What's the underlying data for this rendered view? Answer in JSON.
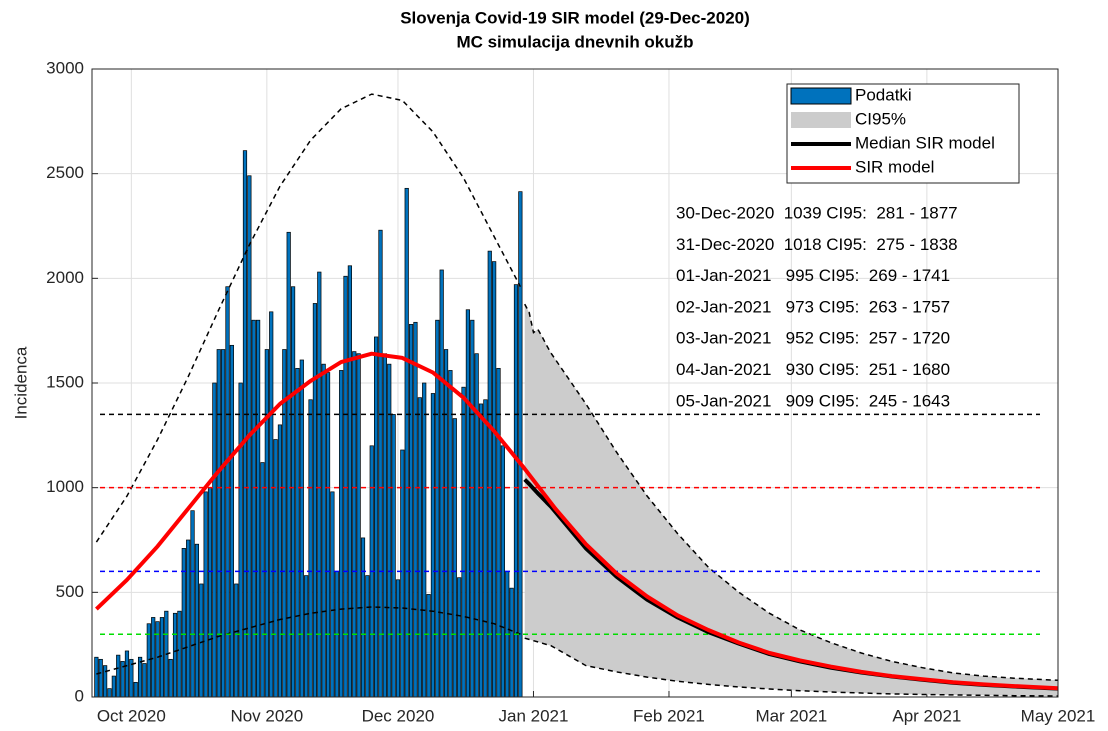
{
  "chart_data": {
    "type": "combo",
    "title": "Slovenja Covid-19 SIR model (29-Dec-2020)",
    "subtitle": "MC simulacija dnevnih okužb",
    "y_label": "Incidenca",
    "xlim": [
      -9,
      212
    ],
    "xticks": [
      {
        "value": 0,
        "label": "Oct 2020"
      },
      {
        "value": 31,
        "label": "Nov 2020"
      },
      {
        "value": 61,
        "label": "Dec 2020"
      },
      {
        "value": 92,
        "label": "Jan 2021"
      },
      {
        "value": 123,
        "label": "Feb 2021"
      },
      {
        "value": 151,
        "label": "Mar 2021"
      },
      {
        "value": 182,
        "label": "Apr 2021"
      },
      {
        "value": 212,
        "label": "May 2021"
      }
    ],
    "ylim": [
      0,
      3000
    ],
    "yticks": [
      0,
      500,
      1000,
      1500,
      2000,
      2500,
      3000
    ],
    "grid": true,
    "legend": "upper-right",
    "series": [
      {
        "name": "Podatki",
        "type": "bar",
        "color": "#0072bd",
        "x": [
          -8,
          -7,
          -6,
          -5,
          -4,
          -3,
          -2,
          -1,
          0,
          1,
          2,
          3,
          4,
          5,
          6,
          7,
          8,
          9,
          10,
          11,
          12,
          13,
          14,
          15,
          16,
          17,
          18,
          19,
          20,
          21,
          22,
          23,
          24,
          25,
          26,
          27,
          28,
          29,
          30,
          31,
          32,
          33,
          34,
          35,
          36,
          37,
          38,
          39,
          40,
          41,
          42,
          43,
          44,
          45,
          46,
          47,
          48,
          49,
          50,
          51,
          52,
          53,
          54,
          55,
          56,
          57,
          58,
          59,
          60,
          61,
          62,
          63,
          64,
          65,
          66,
          67,
          68,
          69,
          70,
          71,
          72,
          73,
          74,
          75,
          76,
          77,
          78,
          79,
          80,
          81,
          82,
          83,
          84,
          85,
          86,
          87,
          88,
          89
        ],
        "values": [
          190,
          180,
          150,
          40,
          100,
          200,
          170,
          220,
          180,
          70,
          190,
          160,
          350,
          380,
          360,
          380,
          410,
          180,
          400,
          410,
          710,
          750,
          890,
          730,
          540,
          980,
          1000,
          1500,
          1660,
          1660,
          1960,
          1680,
          540,
          1500,
          2610,
          2490,
          1800,
          1800,
          1120,
          1660,
          1840,
          1230,
          1300,
          1660,
          2220,
          1960,
          1570,
          1610,
          580,
          1420,
          1880,
          2030,
          1590,
          1550,
          980,
          600,
          1560,
          2010,
          2060,
          1650,
          1640,
          760,
          580,
          1200,
          1720,
          2230,
          1640,
          1590,
          1350,
          560,
          1180,
          2430,
          1780,
          1790,
          1430,
          1500,
          490,
          1450,
          1800,
          2040,
          1660,
          1560,
          1330,
          570,
          1480,
          1850,
          1800,
          1640,
          1400,
          1420,
          2130,
          2080,
          1570,
          1200,
          600,
          520,
          1970,
          2414
        ]
      },
      {
        "name": "CI95%",
        "type": "band",
        "color": "#cccccc",
        "x": [
          90,
          91,
          92,
          93,
          94,
          95,
          96,
          104,
          111,
          118,
          125,
          132,
          139,
          146,
          153,
          160,
          167,
          174,
          181,
          188,
          195,
          202,
          212
        ],
        "lower": [
          281,
          275,
          269,
          263,
          257,
          251,
          245,
          150,
          120,
          95,
          75,
          60,
          48,
          38,
          30,
          24,
          19,
          15,
          12,
          10,
          8,
          6,
          5
        ],
        "upper": [
          1877,
          1838,
          1741,
          1757,
          1720,
          1680,
          1643,
          1400,
          1170,
          960,
          780,
          620,
          500,
          400,
          320,
          260,
          210,
          170,
          140,
          115,
          100,
          90,
          80
        ]
      },
      {
        "name": "Median SIR model",
        "type": "line",
        "color": "#000000",
        "x": [
          90,
          91,
          92,
          93,
          94,
          95,
          96,
          104,
          111,
          118,
          125,
          132,
          139,
          146,
          153,
          160,
          167,
          174,
          181,
          188,
          195,
          202,
          212
        ],
        "values": [
          1039,
          1018,
          995,
          973,
          952,
          930,
          909,
          710,
          575,
          465,
          380,
          310,
          255,
          205,
          170,
          140,
          117,
          98,
          82,
          68,
          58,
          50,
          40
        ]
      },
      {
        "name": "SIR model",
        "type": "line",
        "color": "#ff0000",
        "x": [
          -8,
          -1,
          6,
          13,
          20,
          27,
          34,
          41,
          48,
          55,
          62,
          69,
          76,
          83,
          90,
          97,
          104,
          111,
          118,
          125,
          132,
          139,
          146,
          153,
          160,
          167,
          174,
          181,
          188,
          195,
          202,
          212
        ],
        "values": [
          420,
          560,
          720,
          900,
          1080,
          1250,
          1400,
          1510,
          1600,
          1640,
          1620,
          1550,
          1430,
          1270,
          1090,
          900,
          730,
          590,
          480,
          390,
          320,
          260,
          210,
          175,
          145,
          120,
          100,
          85,
          70,
          60,
          52,
          42
        ]
      }
    ],
    "envelope": {
      "color": "#000000",
      "x": [
        -8,
        -1,
        6,
        13,
        20,
        27,
        34,
        41,
        48,
        55,
        62,
        69,
        76,
        83,
        89
      ],
      "lower": [
        110,
        150,
        190,
        240,
        290,
        330,
        370,
        400,
        420,
        430,
        425,
        410,
        385,
        350,
        300
      ],
      "upper": [
        740,
        960,
        1230,
        1530,
        1850,
        2160,
        2440,
        2660,
        2810,
        2880,
        2850,
        2700,
        2480,
        2200,
        1960
      ]
    },
    "reference_lines": [
      {
        "value": 1350,
        "color": "#000000"
      },
      {
        "value": 1000,
        "color": "#ff0000"
      },
      {
        "value": 600,
        "color": "#0000ff"
      },
      {
        "value": 300,
        "color": "#00dd00"
      }
    ],
    "annotations": [
      "30-Dec-2020  1039 CI95:  281 - 1877",
      "31-Dec-2020  1018 CI95:  275 - 1838",
      "01-Jan-2021   995 CI95:  269 - 1741",
      "02-Jan-2021   973 CI95:  263 - 1757",
      "03-Jan-2021   952 CI95:  257 - 1720",
      "04-Jan-2021   930 CI95:  251 - 1680",
      "05-Jan-2021   909 CI95:  245 - 1643"
    ]
  }
}
